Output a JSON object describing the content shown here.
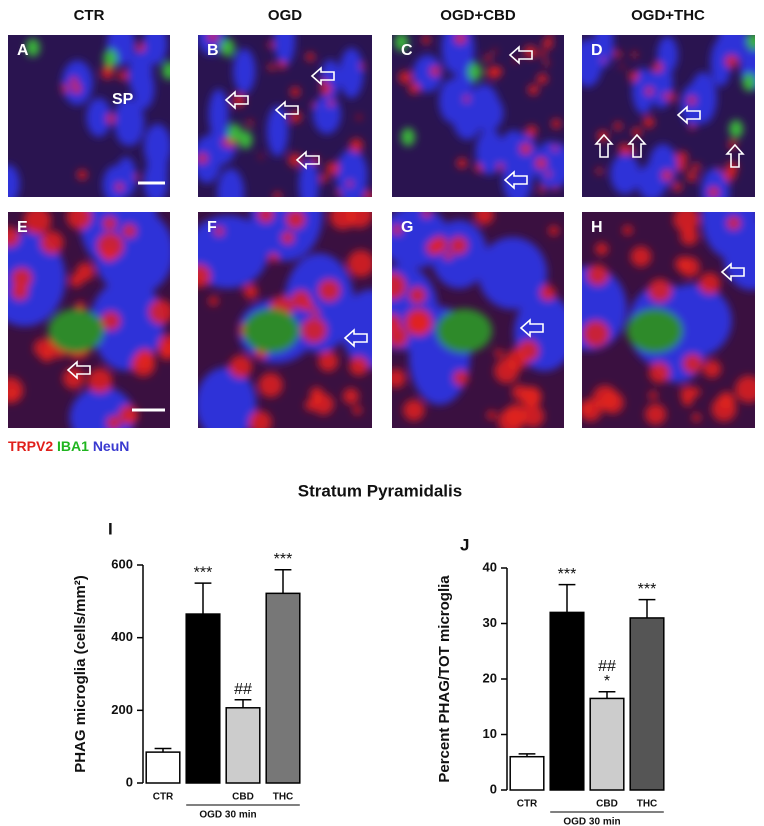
{
  "figure": {
    "columns": [
      "CTR",
      "OGD",
      "OGD+CBD",
      "OGD+THC"
    ],
    "panels": [
      "A",
      "B",
      "C",
      "D",
      "E",
      "F",
      "G",
      "H"
    ],
    "region_label": "SP",
    "legend": [
      {
        "text": "TRPV2",
        "color": "#e0201b"
      },
      {
        "text": "IBA1",
        "color": "#1fb51f"
      },
      {
        "text": "NeuN",
        "color": "#3a3ad0"
      }
    ],
    "heading": "Stratum Pyramidalis"
  },
  "chart_data": [
    {
      "type": "bar",
      "panel": "I",
      "ylabel": "PHAG microglia (cells/mm²)",
      "categories": [
        "CTR",
        null,
        "CBD",
        "THC"
      ],
      "group_label": "OGD 30 min",
      "values": [
        85,
        465,
        207,
        522
      ],
      "errors": [
        10,
        85,
        22,
        65
      ],
      "colors": [
        "#ffffff",
        "#000000",
        "#cccccc",
        "#777777"
      ],
      "significance": [
        null,
        [
          "***"
        ],
        [
          "##"
        ],
        [
          "***"
        ]
      ],
      "ylim": [
        0,
        600
      ],
      "yticks": [
        0,
        200,
        400,
        600
      ]
    },
    {
      "type": "bar",
      "panel": "J",
      "ylabel": "Percent PHAG/TOT microglia",
      "categories": [
        "CTR",
        null,
        "CBD",
        "THC"
      ],
      "group_label": "OGD 30 min",
      "values": [
        6,
        32,
        16.5,
        31
      ],
      "errors": [
        0.5,
        5,
        1.2,
        3.3
      ],
      "colors": [
        "#ffffff",
        "#000000",
        "#cccccc",
        "#555555"
      ],
      "significance": [
        null,
        [
          "***"
        ],
        [
          "##",
          "*"
        ],
        [
          "***"
        ]
      ],
      "ylim": [
        0,
        40
      ],
      "yticks": [
        0,
        10,
        20,
        30,
        40
      ]
    }
  ]
}
